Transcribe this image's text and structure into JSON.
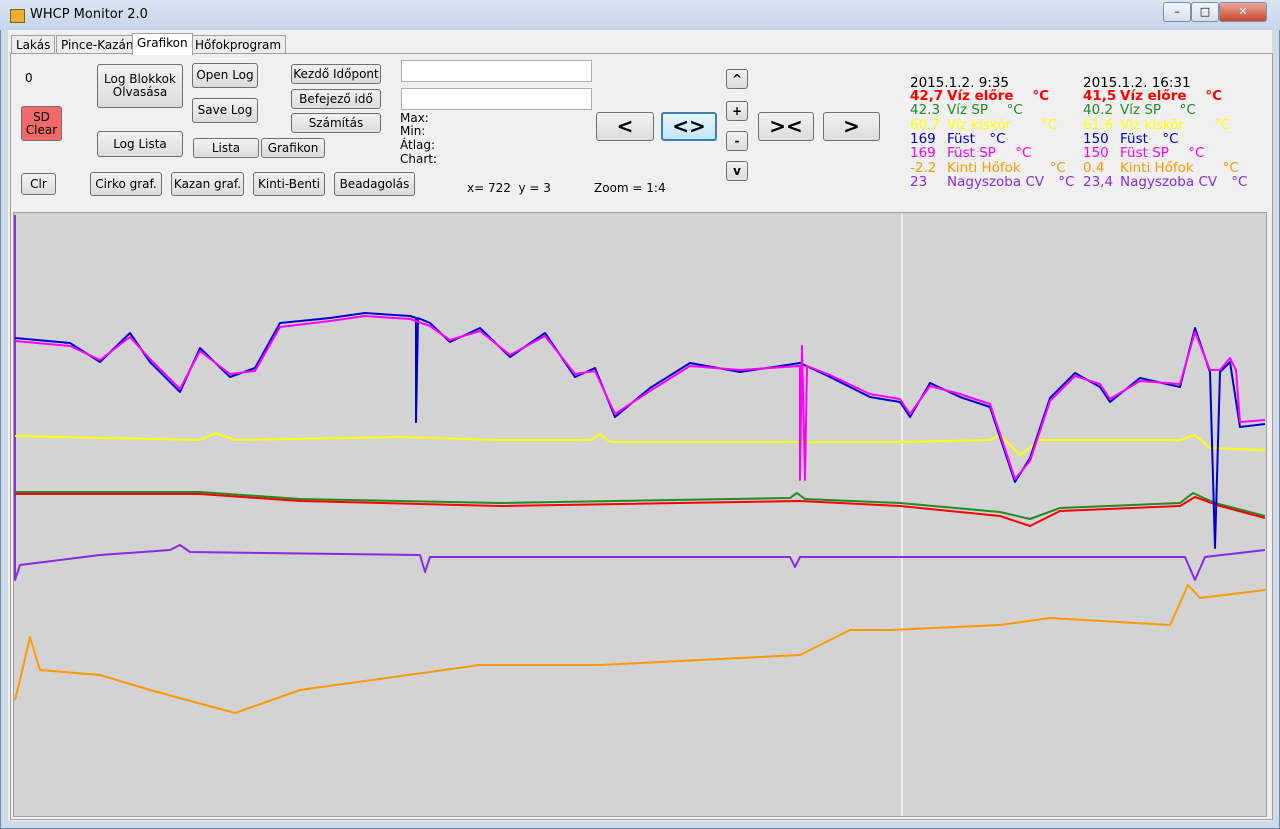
{
  "window": {
    "title": "WHCP Monitor 2.0"
  },
  "tabs": [
    "Lakás",
    "Pince-Kazán",
    "Grafikon",
    "Hőfokprogram"
  ],
  "controls": {
    "counter": "0",
    "sd_clear": "SD Clear",
    "clr": "Clr",
    "log_blokkok": "Log Blokkok Olvasása",
    "log_lista": "Log Lista",
    "open_log": "Open Log",
    "save_log": "Save Log",
    "lista": "Lista",
    "grafikon": "Grafikon",
    "cirko": "Cirko graf.",
    "kazan": "Kazan graf.",
    "kinti_benti": "Kinti-Benti",
    "beadagolas": "Beadagolás",
    "kezdo": "Kezdő Időpont",
    "befejezo": "Befejező idő",
    "szamitas": "Számítás"
  },
  "stats": [
    "Max:",
    "Min:",
    "Átlag:",
    "Chart:"
  ],
  "cursor": "x= 722  y = 3",
  "zoom": "Zoom = 1:4",
  "nav": [
    "<",
    "<>",
    "><",
    ">"
  ],
  "vnav": [
    "^",
    "+",
    "-",
    "v"
  ],
  "legend": [
    {
      "time": "2015.1.2. 9:35",
      "rows": [
        {
          "value": "42,7",
          "name": "Víz előre",
          "unit": "°C",
          "color": "#ff0000",
          "bold": true
        },
        {
          "value": "42.3",
          "name": "Víz SP",
          "unit": "°C",
          "color": "#228b22"
        },
        {
          "value": "60.7",
          "name": "Víz kiskör",
          "unit": "°C",
          "color": "#ffff00"
        },
        {
          "value": "169",
          "name": "Füst",
          "unit": "°C",
          "color": "#0000cd"
        },
        {
          "value": "169",
          "name": "Füst SP",
          "unit": "°C",
          "color": "#ff00ff"
        },
        {
          "value": "-2.2",
          "name": "Kinti Hőfok",
          "unit": "°C",
          "color": "#ff9900"
        },
        {
          "value": "23",
          "name": "Nagyszoba CV",
          "unit": "°C",
          "color": "#8a2be2"
        }
      ]
    },
    {
      "time": "2015.1.2. 16:31",
      "rows": [
        {
          "value": "41,5",
          "name": "Víz előre",
          "unit": "°C",
          "color": "#ff0000",
          "bold": true
        },
        {
          "value": "40.2",
          "name": "Víz SP",
          "unit": "°C",
          "color": "#228b22"
        },
        {
          "value": "61.6",
          "name": "Víz kiskör",
          "unit": "°C",
          "color": "#ffff00"
        },
        {
          "value": "150",
          "name": "Füst",
          "unit": "°C",
          "color": "#0000cd"
        },
        {
          "value": "150",
          "name": "Füst SP",
          "unit": "°C",
          "color": "#ff00ff"
        },
        {
          "value": "0.4",
          "name": "Kinti Hőfok",
          "unit": "°C",
          "color": "#ff9900"
        },
        {
          "value": "23,4",
          "name": "Nagyszoba CV",
          "unit": "°C",
          "color": "#8a2be2"
        }
      ]
    }
  ]
}
